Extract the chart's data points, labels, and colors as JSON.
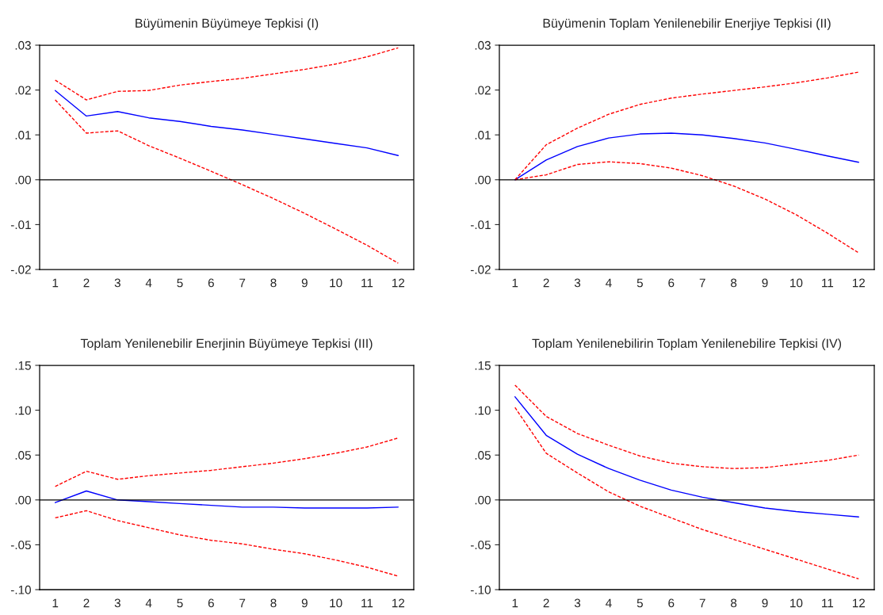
{
  "chart_data": [
    {
      "type": "line",
      "title": "Büyümenin Büyümeye Tepkisi (I)",
      "categories": [
        "1",
        "2",
        "3",
        "4",
        "5",
        "6",
        "7",
        "8",
        "9",
        "10",
        "11",
        "12"
      ],
      "ylim": [
        -0.02,
        0.03
      ],
      "yticks": [
        {
          "value": -0.02,
          "label": "-.02"
        },
        {
          "value": -0.01,
          "label": "-.01"
        },
        {
          "value": 0,
          "label": ".00"
        },
        {
          "value": 0.01,
          "label": ".01"
        },
        {
          "value": 0.02,
          "label": ".02"
        },
        {
          "value": 0.03,
          "label": ".03"
        }
      ],
      "grid": false,
      "legend": false,
      "ref_lines": [
        {
          "axis": "y",
          "value": 0,
          "color": "#000000",
          "line_style": "solid"
        }
      ],
      "series": [
        {
          "color": "#0000ff",
          "line_style": "solid",
          "values": [
            0.0199,
            0.0142,
            0.0152,
            0.0138,
            0.013,
            0.0119,
            0.0111,
            0.0101,
            0.0091,
            0.0081,
            0.0071,
            0.0054
          ]
        },
        {
          "color": "#ff0000",
          "line_style": "dashed",
          "values": [
            0.0222,
            0.0178,
            0.0197,
            0.0199,
            0.0211,
            0.0219,
            0.0226,
            0.0236,
            0.0246,
            0.0258,
            0.0274,
            0.0294
          ]
        },
        {
          "color": "#ff0000",
          "line_style": "dashed",
          "values": [
            0.0178,
            0.0104,
            0.0109,
            0.0076,
            0.0048,
            0.0019,
            -0.0011,
            -0.0042,
            -0.0075,
            -0.011,
            -0.0146,
            -0.0186
          ]
        }
      ]
    },
    {
      "type": "line",
      "title": "Büyümenin Toplam Yenilenebilir Enerjiye Tepkisi (II)",
      "categories": [
        "1",
        "2",
        "3",
        "4",
        "5",
        "6",
        "7",
        "8",
        "9",
        "10",
        "11",
        "12"
      ],
      "ylim": [
        -0.02,
        0.03
      ],
      "yticks": [
        {
          "value": -0.02,
          "label": "-.02"
        },
        {
          "value": -0.01,
          "label": "-.01"
        },
        {
          "value": 0,
          "label": ".00"
        },
        {
          "value": 0.01,
          "label": ".01"
        },
        {
          "value": 0.02,
          "label": ".02"
        },
        {
          "value": 0.03,
          "label": ".03"
        }
      ],
      "grid": false,
      "legend": false,
      "ref_lines": [
        {
          "axis": "y",
          "value": 0,
          "color": "#000000",
          "line_style": "solid"
        }
      ],
      "series": [
        {
          "color": "#0000ff",
          "line_style": "solid",
          "values": [
            0.0,
            0.0044,
            0.0074,
            0.0093,
            0.0102,
            0.0104,
            0.01,
            0.0092,
            0.0082,
            0.0068,
            0.0053,
            0.0039
          ]
        },
        {
          "color": "#ff0000",
          "line_style": "dashed",
          "values": [
            0.0,
            0.0078,
            0.0115,
            0.0146,
            0.0168,
            0.0182,
            0.0191,
            0.0199,
            0.0207,
            0.0216,
            0.0227,
            0.024
          ]
        },
        {
          "color": "#ff0000",
          "line_style": "dashed",
          "values": [
            0.0,
            0.0011,
            0.0034,
            0.004,
            0.0036,
            0.0026,
            0.0009,
            -0.0014,
            -0.0043,
            -0.0078,
            -0.0119,
            -0.0163
          ]
        }
      ]
    },
    {
      "type": "line",
      "title": "Toplam Yenilenebilir Enerjinin Büyümeye Tepkisi (III)",
      "categories": [
        "1",
        "2",
        "3",
        "4",
        "5",
        "6",
        "7",
        "8",
        "9",
        "10",
        "11",
        "12"
      ],
      "ylim": [
        -0.1,
        0.15
      ],
      "yticks": [
        {
          "value": -0.1,
          "label": "-.10"
        },
        {
          "value": -0.05,
          "label": "-.05"
        },
        {
          "value": 0,
          "label": ".00"
        },
        {
          "value": 0.05,
          "label": ".05"
        },
        {
          "value": 0.1,
          "label": ".10"
        },
        {
          "value": 0.15,
          "label": ".15"
        }
      ],
      "grid": false,
      "legend": false,
      "ref_lines": [
        {
          "axis": "y",
          "value": 0,
          "color": "#000000",
          "line_style": "solid"
        }
      ],
      "series": [
        {
          "color": "#0000ff",
          "line_style": "solid",
          "values": [
            -0.003,
            0.01,
            0.0,
            -0.002,
            -0.004,
            -0.006,
            -0.008,
            -0.008,
            -0.009,
            -0.009,
            -0.009,
            -0.008
          ]
        },
        {
          "color": "#ff0000",
          "line_style": "dashed",
          "values": [
            0.015,
            0.032,
            0.023,
            0.027,
            0.03,
            0.033,
            0.037,
            0.041,
            0.046,
            0.052,
            0.059,
            0.069
          ]
        },
        {
          "color": "#ff0000",
          "line_style": "dashed",
          "values": [
            -0.02,
            -0.012,
            -0.023,
            -0.031,
            -0.039,
            -0.045,
            -0.049,
            -0.055,
            -0.06,
            -0.067,
            -0.075,
            -0.085
          ]
        }
      ]
    },
    {
      "type": "line",
      "title": "Toplam Yenilenebilirin Toplam Yenilenebilire Tepkisi (IV)",
      "categories": [
        "1",
        "2",
        "3",
        "4",
        "5",
        "6",
        "7",
        "8",
        "9",
        "10",
        "11",
        "12"
      ],
      "ylim": [
        -0.1,
        0.15
      ],
      "yticks": [
        {
          "value": -0.1,
          "label": "-.10"
        },
        {
          "value": -0.05,
          "label": "-.05"
        },
        {
          "value": 0,
          "label": ".00"
        },
        {
          "value": 0.05,
          "label": ".05"
        },
        {
          "value": 0.1,
          "label": ".10"
        },
        {
          "value": 0.15,
          "label": ".15"
        }
      ],
      "grid": false,
      "legend": false,
      "ref_lines": [
        {
          "axis": "y",
          "value": 0,
          "color": "#000000",
          "line_style": "solid"
        }
      ],
      "series": [
        {
          "color": "#0000ff",
          "line_style": "solid",
          "values": [
            0.115,
            0.072,
            0.051,
            0.035,
            0.022,
            0.011,
            0.003,
            -0.003,
            -0.009,
            -0.013,
            -0.016,
            -0.019
          ]
        },
        {
          "color": "#ff0000",
          "line_style": "dashed",
          "values": [
            0.128,
            0.093,
            0.074,
            0.061,
            0.049,
            0.041,
            0.037,
            0.035,
            0.036,
            0.04,
            0.044,
            0.05
          ]
        },
        {
          "color": "#ff0000",
          "line_style": "dashed",
          "values": [
            0.103,
            0.052,
            0.03,
            0.009,
            -0.007,
            -0.02,
            -0.033,
            -0.044,
            -0.055,
            -0.066,
            -0.077,
            -0.088
          ]
        }
      ]
    }
  ]
}
